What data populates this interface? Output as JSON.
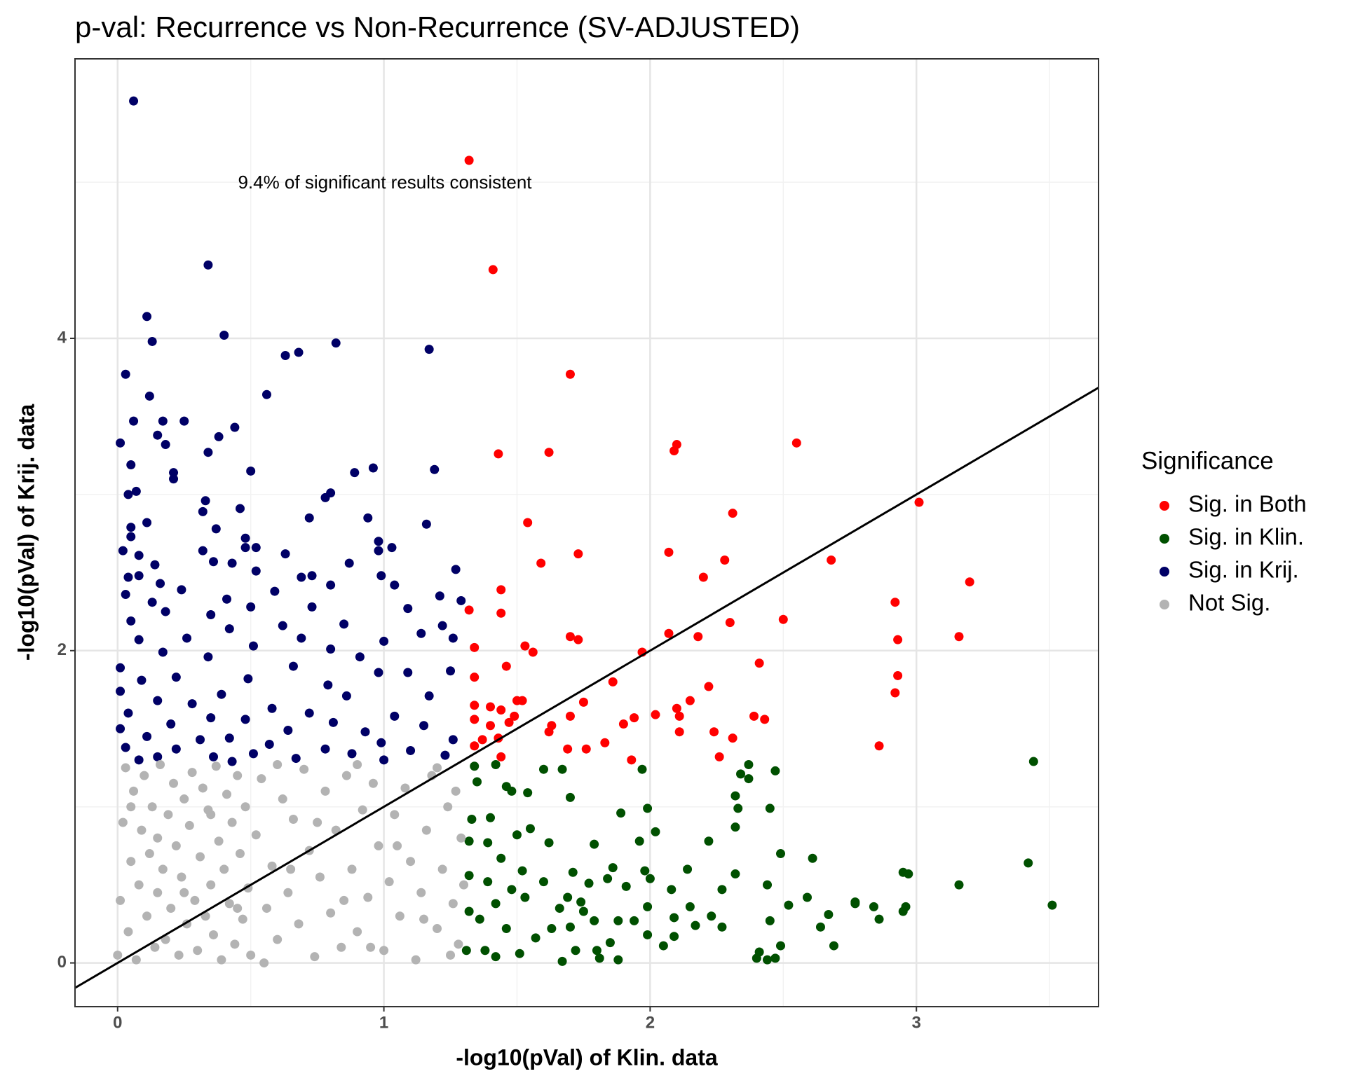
{
  "chart_data": {
    "type": "scatter",
    "title": "p-val: Recurrence vs Non-Recurrence (SV-ADJUSTED)",
    "x_label": "-log10(pVal) of Klin. data",
    "y_label": "-log10(pVal) of Krij. data",
    "annotation": "9.4% of significant results consistent",
    "legend_title": "Significance",
    "legend_position": "right",
    "grid": true,
    "xlim": [
      -0.16,
      3.684
    ],
    "ylim": [
      -0.28,
      5.79
    ],
    "xticks": [
      0,
      1,
      2,
      3
    ],
    "yticks": [
      0,
      2,
      4
    ],
    "abline": {
      "slope": 1,
      "intercept": 0
    },
    "series": [
      {
        "name": "Sig. in Both",
        "color": "#ff0000",
        "x": [
          1.32,
          1.41,
          1.7,
          2.55,
          2.1,
          1.43,
          1.62,
          2.09,
          3.01,
          2.31,
          1.54,
          1.73,
          2.07,
          2.68,
          2.28,
          1.59,
          2.2,
          3.2,
          1.44,
          2.92,
          1.32,
          1.44,
          2.5,
          2.3,
          2.07,
          1.7,
          1.73,
          2.18,
          3.16,
          2.93,
          1.53,
          1.34,
          1.56,
          1.97,
          2.41,
          1.46,
          2.93,
          1.34,
          1.86,
          2.22,
          2.92,
          1.5,
          1.52,
          1.75,
          2.15,
          1.4,
          1.34,
          1.44,
          2.02,
          2.1,
          2.11,
          2.39,
          2.43,
          1.7,
          1.49,
          1.94,
          1.34,
          1.9,
          1.63,
          1.4,
          1.47,
          1.62,
          2.24,
          2.31,
          2.11,
          1.43,
          1.37,
          1.83,
          1.34,
          2.86,
          1.76,
          1.69,
          2.26,
          1.93,
          1.44
        ],
        "values": [
          5.14,
          4.44,
          3.77,
          3.33,
          3.32,
          3.26,
          3.27,
          3.28,
          2.95,
          2.88,
          2.82,
          2.62,
          2.63,
          2.58,
          2.58,
          2.56,
          2.47,
          2.44,
          2.39,
          2.31,
          2.26,
          2.24,
          2.2,
          2.18,
          2.11,
          2.09,
          2.07,
          2.09,
          2.09,
          2.07,
          2.03,
          2.02,
          1.99,
          1.99,
          1.92,
          1.9,
          1.84,
          1.83,
          1.8,
          1.77,
          1.73,
          1.68,
          1.68,
          1.67,
          1.68,
          1.64,
          1.65,
          1.62,
          1.59,
          1.63,
          1.58,
          1.58,
          1.56,
          1.58,
          1.58,
          1.57,
          1.56,
          1.53,
          1.52,
          1.52,
          1.54,
          1.48,
          1.48,
          1.44,
          1.48,
          1.44,
          1.43,
          1.41,
          1.39,
          1.39,
          1.37,
          1.37,
          1.32,
          1.3,
          1.32
        ]
      },
      {
        "name": "Sig. in Klin.",
        "color": "#005000",
        "x": [
          3.44,
          3.42,
          3.51,
          3.16,
          2.95,
          2.97,
          2.96,
          2.95,
          2.86,
          2.84,
          2.77,
          2.77,
          2.69,
          2.67,
          2.64,
          2.61,
          2.59,
          2.52,
          2.49,
          2.49,
          2.45,
          2.44,
          2.45,
          2.47,
          2.37,
          2.41,
          2.4,
          2.47,
          2.44,
          2.33,
          2.32,
          2.32,
          2.32,
          2.34,
          2.37,
          2.27,
          2.27,
          2.23,
          2.22,
          2.17,
          2.14,
          2.15,
          2.09,
          2.08,
          2.09,
          2.05,
          2.02,
          2.0,
          1.98,
          1.99,
          1.99,
          1.97,
          1.99,
          1.96,
          1.94,
          1.91,
          1.88,
          1.88,
          1.89,
          1.86,
          1.84,
          1.85,
          1.81,
          1.8,
          1.79,
          1.79,
          1.77,
          1.75,
          1.74,
          1.71,
          1.72,
          1.7,
          1.67,
          1.69,
          1.7,
          1.67,
          1.66,
          1.63,
          1.62,
          1.6,
          1.6,
          1.57,
          1.55,
          1.54,
          1.53,
          1.52,
          1.51,
          1.5,
          1.48,
          1.48,
          1.46,
          1.46,
          1.44,
          1.42,
          1.42,
          1.42,
          1.4,
          1.39,
          1.39,
          1.38,
          1.36,
          1.35,
          1.34,
          1.33,
          1.32,
          1.32,
          1.31,
          1.32
        ],
        "values": [
          1.29,
          0.64,
          0.37,
          0.5,
          0.58,
          0.57,
          0.36,
          0.33,
          0.28,
          0.36,
          0.38,
          0.39,
          0.11,
          0.31,
          0.23,
          0.67,
          0.42,
          0.37,
          0.7,
          0.11,
          0.27,
          0.5,
          0.99,
          1.23,
          1.27,
          0.07,
          0.03,
          0.03,
          0.02,
          0.99,
          0.87,
          0.57,
          1.07,
          1.21,
          1.18,
          0.47,
          0.23,
          0.3,
          0.78,
          0.24,
          0.6,
          0.36,
          0.17,
          0.47,
          0.29,
          0.11,
          0.84,
          0.54,
          0.59,
          0.36,
          0.18,
          1.24,
          0.99,
          0.78,
          0.27,
          0.49,
          0.27,
          0.02,
          0.96,
          0.61,
          0.54,
          0.13,
          0.03,
          0.08,
          0.27,
          0.76,
          0.51,
          0.33,
          0.39,
          0.58,
          0.08,
          0.23,
          0.01,
          0.42,
          1.06,
          1.24,
          0.35,
          0.22,
          0.77,
          1.24,
          0.52,
          0.16,
          0.86,
          1.09,
          0.42,
          0.59,
          0.06,
          0.82,
          1.1,
          0.47,
          0.22,
          1.13,
          0.67,
          0.38,
          0.04,
          1.27,
          0.93,
          0.77,
          0.52,
          0.08,
          0.28,
          1.16,
          1.26,
          0.92,
          0.56,
          0.33,
          0.08,
          0.78
        ]
      },
      {
        "name": "Sig. in Krij.",
        "color": "#000066",
        "x": [
          0.06,
          0.34,
          0.11,
          0.4,
          0.13,
          0.82,
          1.17,
          0.68,
          0.63,
          0.03,
          0.56,
          0.12,
          0.06,
          0.17,
          0.25,
          0.44,
          0.15,
          0.38,
          0.01,
          0.18,
          0.34,
          0.05,
          0.96,
          0.5,
          1.19,
          0.89,
          0.21,
          0.21,
          0.07,
          0.8,
          0.04,
          0.78,
          0.33,
          0.46,
          0.32,
          0.72,
          0.94,
          0.11,
          1.16,
          0.05,
          0.37,
          0.05,
          0.48,
          0.98,
          1.03,
          0.98,
          0.48,
          0.52,
          0.32,
          0.02,
          0.63,
          0.08,
          0.43,
          0.36,
          0.87,
          0.14,
          1.27,
          0.52,
          0.73,
          0.04,
          0.99,
          0.08,
          0.16,
          0.69,
          0.8,
          1.04,
          0.59,
          0.24,
          0.03,
          1.21,
          0.41,
          1.29,
          0.13,
          0.5,
          0.73,
          1.09,
          0.18,
          0.35,
          0.05,
          0.85,
          0.62,
          1.22,
          0.42,
          1.14,
          0.26,
          0.69,
          0.08,
          1.0,
          1.26,
          0.51,
          0.8,
          0.17,
          0.34,
          0.91,
          0.01,
          0.66,
          0.98,
          1.09,
          1.25,
          0.22,
          0.49,
          0.09,
          0.79,
          0.01,
          0.39,
          0.86,
          1.17,
          0.15,
          0.28,
          0.58,
          0.04,
          0.72,
          1.04,
          0.35,
          0.48,
          0.81,
          0.2,
          1.15,
          0.01,
          0.64,
          0.93,
          0.11,
          0.42,
          1.26,
          0.31,
          0.57,
          0.99,
          0.03,
          0.22,
          0.78,
          1.1,
          0.51,
          1.23,
          0.36,
          0.15,
          0.88,
          0.67,
          0.08,
          1.0,
          0.43
        ],
        "values": [
          5.52,
          4.47,
          4.14,
          4.02,
          3.98,
          3.97,
          3.93,
          3.91,
          3.89,
          3.77,
          3.64,
          3.63,
          3.47,
          3.47,
          3.47,
          3.43,
          3.38,
          3.37,
          3.33,
          3.32,
          3.27,
          3.19,
          3.17,
          3.15,
          3.16,
          3.14,
          3.14,
          3.1,
          3.02,
          3.01,
          3.0,
          2.98,
          2.96,
          2.91,
          2.89,
          2.85,
          2.85,
          2.82,
          2.81,
          2.79,
          2.78,
          2.73,
          2.72,
          2.7,
          2.66,
          2.64,
          2.66,
          2.66,
          2.64,
          2.64,
          2.62,
          2.61,
          2.56,
          2.57,
          2.56,
          2.55,
          2.52,
          2.51,
          2.48,
          2.47,
          2.48,
          2.48,
          2.43,
          2.47,
          2.42,
          2.42,
          2.38,
          2.39,
          2.36,
          2.35,
          2.33,
          2.32,
          2.31,
          2.28,
          2.28,
          2.27,
          2.25,
          2.23,
          2.19,
          2.17,
          2.16,
          2.16,
          2.14,
          2.11,
          2.08,
          2.08,
          2.07,
          2.06,
          2.08,
          2.03,
          2.01,
          1.99,
          1.96,
          1.96,
          1.89,
          1.9,
          1.86,
          1.86,
          1.87,
          1.83,
          1.82,
          1.81,
          1.78,
          1.74,
          1.72,
          1.71,
          1.71,
          1.68,
          1.66,
          1.63,
          1.6,
          1.6,
          1.58,
          1.57,
          1.56,
          1.54,
          1.53,
          1.52,
          1.5,
          1.49,
          1.48,
          1.45,
          1.44,
          1.43,
          1.43,
          1.4,
          1.41,
          1.38,
          1.37,
          1.37,
          1.36,
          1.34,
          1.33,
          1.32,
          1.32,
          1.34,
          1.31,
          1.3,
          1.3,
          1.29
        ]
      },
      {
        "name": "Not Sig.",
        "color": "#b3b3b3",
        "x": [
          0.0,
          0.01,
          0.02,
          0.03,
          0.04,
          0.05,
          0.06,
          0.07,
          0.08,
          0.09,
          0.1,
          0.11,
          0.12,
          0.13,
          0.14,
          0.15,
          0.16,
          0.17,
          0.18,
          0.19,
          0.2,
          0.21,
          0.22,
          0.23,
          0.24,
          0.25,
          0.26,
          0.27,
          0.28,
          0.29,
          0.3,
          0.31,
          0.32,
          0.33,
          0.34,
          0.35,
          0.36,
          0.37,
          0.38,
          0.39,
          0.4,
          0.41,
          0.42,
          0.43,
          0.44,
          0.45,
          0.46,
          0.47,
          0.48,
          0.49,
          0.5,
          0.52,
          0.54,
          0.56,
          0.58,
          0.6,
          0.62,
          0.64,
          0.66,
          0.68,
          0.7,
          0.72,
          0.74,
          0.76,
          0.78,
          0.8,
          0.82,
          0.84,
          0.86,
          0.88,
          0.9,
          0.92,
          0.94,
          0.96,
          0.98,
          1.0,
          1.02,
          1.04,
          1.06,
          1.08,
          1.1,
          1.12,
          1.14,
          1.16,
          1.18,
          1.2,
          1.22,
          1.24,
          1.26,
          1.28,
          1.29,
          1.3,
          1.27,
          1.25,
          0.55,
          0.35,
          0.15,
          0.65,
          0.85,
          1.05,
          0.45,
          0.25,
          0.75,
          0.95,
          1.15,
          0.05,
          0.6,
          0.9,
          1.2
        ],
        "values": [
          0.05,
          0.4,
          0.9,
          1.25,
          0.2,
          0.65,
          1.1,
          0.02,
          0.5,
          0.85,
          1.2,
          0.3,
          0.7,
          1.0,
          0.1,
          0.45,
          1.27,
          0.6,
          0.15,
          0.95,
          0.35,
          1.15,
          0.75,
          0.05,
          0.55,
          1.05,
          0.25,
          0.88,
          1.22,
          0.4,
          0.08,
          0.68,
          1.12,
          0.3,
          0.98,
          0.5,
          0.18,
          1.26,
          0.78,
          0.02,
          0.6,
          1.08,
          0.38,
          0.9,
          0.12,
          1.2,
          0.7,
          0.28,
          1.0,
          0.48,
          0.05,
          0.82,
          1.18,
          0.35,
          0.62,
          0.15,
          1.05,
          0.45,
          0.92,
          0.25,
          1.24,
          0.72,
          0.04,
          0.55,
          1.1,
          0.32,
          0.85,
          0.1,
          1.2,
          0.6,
          0.2,
          0.98,
          0.42,
          1.15,
          0.75,
          0.08,
          0.52,
          0.95,
          0.3,
          1.12,
          0.65,
          0.02,
          0.45,
          0.85,
          1.2,
          0.22,
          0.6,
          1.0,
          0.38,
          0.12,
          0.8,
          0.5,
          1.1,
          0.05,
          0.0,
          0.95,
          0.8,
          0.6,
          0.4,
          0.75,
          0.35,
          0.45,
          0.9,
          0.1,
          0.28,
          1.0,
          1.27,
          1.27,
          1.25
        ]
      }
    ]
  }
}
